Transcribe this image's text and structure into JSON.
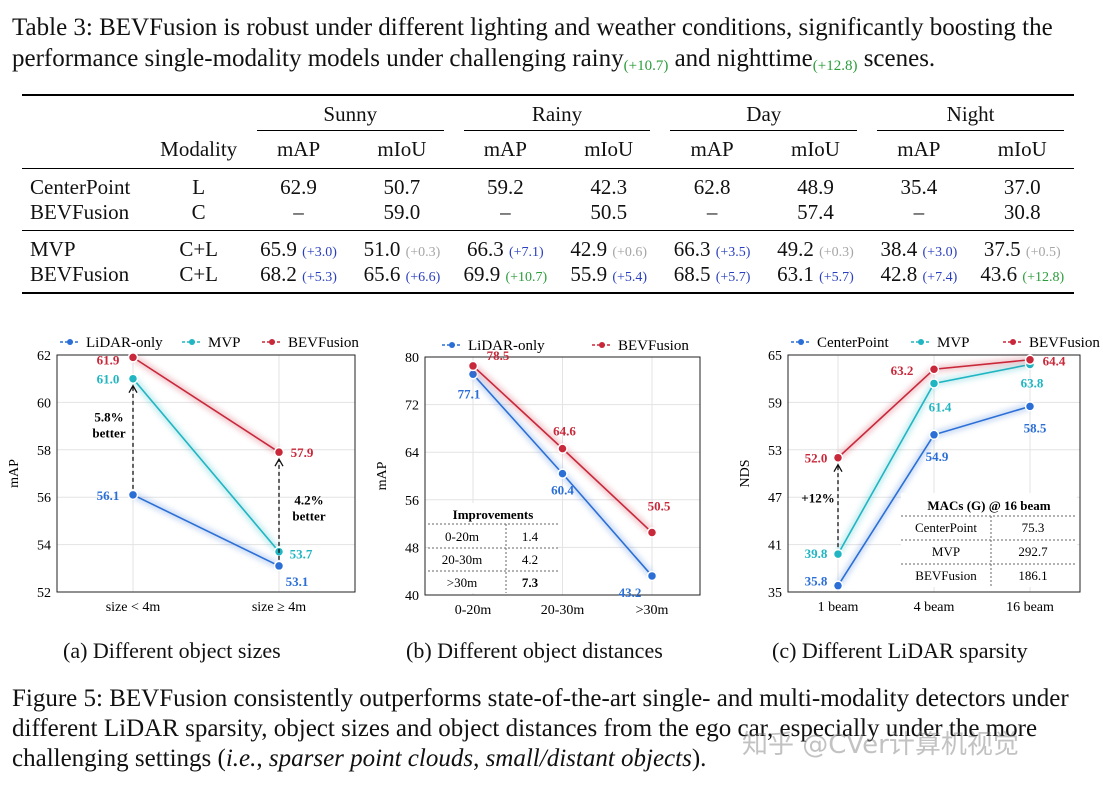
{
  "table_caption": {
    "prefix": "Table 3: BEVFusion is robust under different lighting and weather conditions, significantly boosting the performance single-modality models under challenging rainy",
    "rainy_gain": "(+10.7)",
    "middle": " and nighttime",
    "night_gain": "(+12.8)",
    "suffix": " scenes."
  },
  "table": {
    "groups": [
      "Sunny",
      "Rainy",
      "Day",
      "Night"
    ],
    "modality_header": "Modality",
    "metrics": [
      "mAP",
      "mIoU",
      "mAP",
      "mIoU",
      "mAP",
      "mIoU",
      "mAP",
      "mIoU"
    ],
    "rows": [
      {
        "name": "CenterPoint",
        "modality": "L",
        "cells": [
          {
            "v": "62.9"
          },
          {
            "v": "50.7"
          },
          {
            "v": "59.2"
          },
          {
            "v": "42.3"
          },
          {
            "v": "62.8"
          },
          {
            "v": "48.9"
          },
          {
            "v": "35.4"
          },
          {
            "v": "37.0"
          }
        ]
      },
      {
        "name": "BEVFusion",
        "modality": "C",
        "cells": [
          {
            "v": "–"
          },
          {
            "v": "59.0"
          },
          {
            "v": "–"
          },
          {
            "v": "50.5"
          },
          {
            "v": "–"
          },
          {
            "v": "57.4"
          },
          {
            "v": "–"
          },
          {
            "v": "30.8"
          }
        ]
      },
      {
        "name": "MVP",
        "modality": "C+L",
        "cells": [
          {
            "v": "65.9",
            "d": "(+3.0)",
            "c": "b"
          },
          {
            "v": "51.0",
            "d": "(+0.3)",
            "c": "g"
          },
          {
            "v": "66.3",
            "d": "(+7.1)",
            "c": "b"
          },
          {
            "v": "42.9",
            "d": "(+0.6)",
            "c": "g"
          },
          {
            "v": "66.3",
            "d": "(+3.5)",
            "c": "b"
          },
          {
            "v": "49.2",
            "d": "(+0.3)",
            "c": "g"
          },
          {
            "v": "38.4",
            "d": "(+3.0)",
            "c": "b"
          },
          {
            "v": "37.5",
            "d": "(+0.5)",
            "c": "g"
          }
        ]
      },
      {
        "name": "BEVFusion",
        "modality": "C+L",
        "cells": [
          {
            "v": "68.2",
            "d": "(+5.3)",
            "c": "b"
          },
          {
            "v": "65.6",
            "d": "(+6.6)",
            "c": "b"
          },
          {
            "v": "69.9",
            "d": "(+10.7)",
            "c": "gr"
          },
          {
            "v": "55.9",
            "d": "(+5.4)",
            "c": "b"
          },
          {
            "v": "68.5",
            "d": "(+5.7)",
            "c": "b"
          },
          {
            "v": "63.1",
            "d": "(+5.7)",
            "c": "b"
          },
          {
            "v": "42.8",
            "d": "(+7.4)",
            "c": "b"
          },
          {
            "v": "43.6",
            "d": "(+12.8)",
            "c": "gr"
          }
        ]
      }
    ]
  },
  "colors": {
    "lidar": "#2b6fd6",
    "mvp": "#1fb5c2",
    "bevfusion": "#c8283a",
    "centerpoint": "#2b6fd6"
  },
  "chart_data": [
    {
      "type": "line",
      "title": "",
      "ylabel": "mAP",
      "categories": [
        "size < 4m",
        "size ≥ 4m"
      ],
      "ylim": [
        52,
        62
      ],
      "yticks": [
        52,
        54,
        56,
        58,
        60,
        62
      ],
      "series": [
        {
          "name": "LiDAR-only",
          "color": "#2b6fd6",
          "values": [
            56.1,
            53.1
          ],
          "labels": [
            "56.1",
            "53.1"
          ]
        },
        {
          "name": "MVP",
          "color": "#1fb5c2",
          "values": [
            61.0,
            53.7
          ],
          "labels": [
            "61.0",
            "53.7"
          ]
        },
        {
          "name": "BEVFusion",
          "color": "#c8283a",
          "values": [
            61.9,
            57.9
          ],
          "labels": [
            "61.9",
            "57.9"
          ]
        }
      ],
      "annotations": [
        {
          "lines": [
            "5.8%",
            "better"
          ]
        },
        {
          "lines": [
            "4.2%",
            "better"
          ]
        }
      ],
      "subcaption": "(a) Different object sizes"
    },
    {
      "type": "line",
      "ylabel": "mAP",
      "categories": [
        "0-20m",
        "20-30m",
        ">30m"
      ],
      "ylim": [
        40,
        80
      ],
      "yticks": [
        40,
        48,
        56,
        64,
        72,
        80
      ],
      "series": [
        {
          "name": "LiDAR-only",
          "color": "#2b6fd6",
          "values": [
            77.1,
            60.4,
            43.2
          ],
          "labels": [
            "77.1",
            "60.4",
            "43.2"
          ]
        },
        {
          "name": "BEVFusion",
          "color": "#c8283a",
          "values": [
            78.5,
            64.6,
            50.5
          ],
          "labels": [
            "78.5",
            "64.6",
            "50.5"
          ]
        }
      ],
      "inset_table": {
        "title": "Improvements",
        "rows": [
          [
            "0-20m",
            "1.4"
          ],
          [
            "20-30m",
            "4.2"
          ],
          [
            ">30m",
            "7.3"
          ]
        ]
      },
      "subcaption": "(b) Different object distances"
    },
    {
      "type": "line",
      "ylabel": "NDS",
      "categories": [
        "1 beam",
        "4 beam",
        "16 beam"
      ],
      "ylim": [
        35,
        65
      ],
      "yticks": [
        35,
        41,
        47,
        53,
        59,
        65
      ],
      "series": [
        {
          "name": "CenterPoint",
          "color": "#2b6fd6",
          "values": [
            35.8,
            54.9,
            58.5
          ],
          "labels": [
            "35.8",
            "54.9",
            "58.5"
          ]
        },
        {
          "name": "MVP",
          "color": "#1fb5c2",
          "values": [
            39.8,
            61.4,
            63.8
          ],
          "labels": [
            "39.8",
            "61.4",
            "63.8"
          ]
        },
        {
          "name": "BEVFusion",
          "color": "#c8283a",
          "values": [
            52.0,
            63.2,
            64.4
          ],
          "labels": [
            "52.0",
            "63.2",
            "64.4"
          ]
        }
      ],
      "annotations": [
        {
          "lines": [
            "+12%"
          ]
        }
      ],
      "inset_table": {
        "title": "MACs (G) @ 16 beam",
        "rows": [
          [
            "CenterPoint",
            "75.3"
          ],
          [
            "MVP",
            "292.7"
          ],
          [
            "BEVFusion",
            "186.1"
          ]
        ]
      },
      "subcaption": "(c) Different LiDAR sparsity"
    }
  ],
  "figure_caption": {
    "lead": "Figure 5: BEVFusion consistently outperforms state-of-the-art single- and multi-modality detectors under different LiDAR sparsity, object sizes and object distances from the ego car, especially under the more challenging settings (",
    "ie": "i.e.",
    "comma": ", ",
    "em1": "sparser point clouds",
    "sep": ", ",
    "em2": "small/distant objects",
    "end": ")."
  },
  "watermark": "知乎 @CVer计算机视觉"
}
